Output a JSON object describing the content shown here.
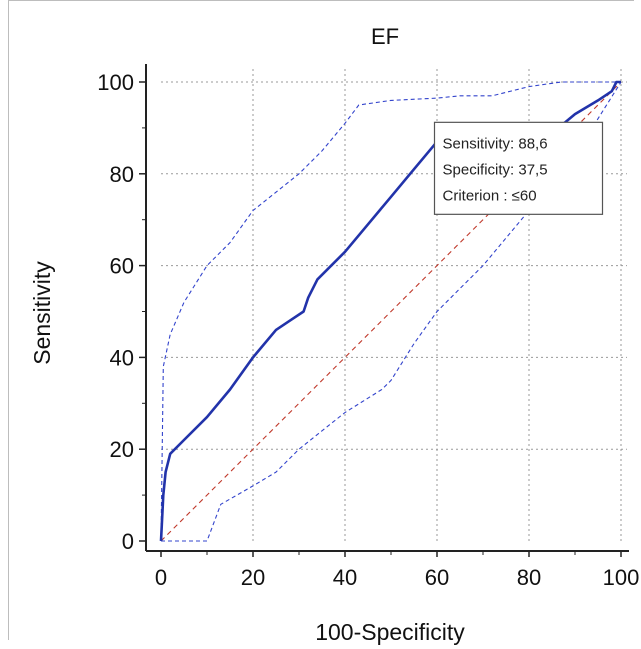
{
  "chart_data": {
    "type": "line",
    "title": "EF",
    "xlabel": "100-Specificity",
    "ylabel": "Sensitivity",
    "xlim": [
      0,
      100
    ],
    "ylim": [
      0,
      100
    ],
    "xticks": [
      "0",
      "20",
      "40",
      "60",
      "80",
      "100"
    ],
    "yticks": [
      "0",
      "20",
      "40",
      "60",
      "80",
      "100"
    ],
    "grid": true,
    "series": [
      {
        "role": "roc",
        "color": "#2233aa",
        "style": "solid",
        "x": [
          0,
          0.5,
          1,
          2,
          5,
          10,
          15,
          20,
          25,
          28,
          31,
          32,
          34,
          40,
          45,
          50,
          55,
          60,
          62,
          70,
          77,
          80,
          87,
          90,
          95,
          98,
          99,
          100
        ],
        "y": [
          0,
          10,
          15,
          19,
          22,
          27,
          33,
          40,
          46,
          48,
          50,
          53,
          57,
          63,
          69,
          75,
          81,
          87,
          88.6,
          89,
          90.5,
          90.5,
          90.5,
          93,
          96,
          98,
          100,
          100
        ]
      },
      {
        "role": "ci-upper",
        "color": "#3344cc",
        "style": "dashed",
        "x": [
          0,
          0.5,
          2,
          5,
          10,
          15,
          20,
          25,
          30,
          35,
          40,
          43,
          50,
          60,
          65,
          72,
          80,
          87,
          90,
          100
        ],
        "y": [
          0,
          38,
          45,
          52,
          60,
          65,
          72,
          76,
          80,
          85,
          91,
          95,
          96,
          96.5,
          97,
          97,
          99,
          100,
          100,
          100
        ]
      },
      {
        "role": "ci-lower",
        "color": "#3344cc",
        "style": "dashed",
        "x": [
          0,
          10,
          13,
          20,
          25,
          30,
          40,
          48,
          50,
          55,
          60,
          65,
          70,
          80,
          90,
          95,
          100
        ],
        "y": [
          0,
          0,
          8,
          12,
          15,
          20,
          28,
          33,
          35,
          43,
          50,
          55,
          60,
          72,
          84,
          92,
          100
        ]
      },
      {
        "role": "reference",
        "color": "#c0392b",
        "style": "dashed",
        "x": [
          0,
          100
        ],
        "y": [
          0,
          100
        ]
      }
    ],
    "annotation": {
      "lines": [
        "Sensitivity: 88,6",
        "Specificity: 37,5",
        "Criterion : ≤60"
      ],
      "x": 62.5,
      "y": 88.6
    }
  }
}
